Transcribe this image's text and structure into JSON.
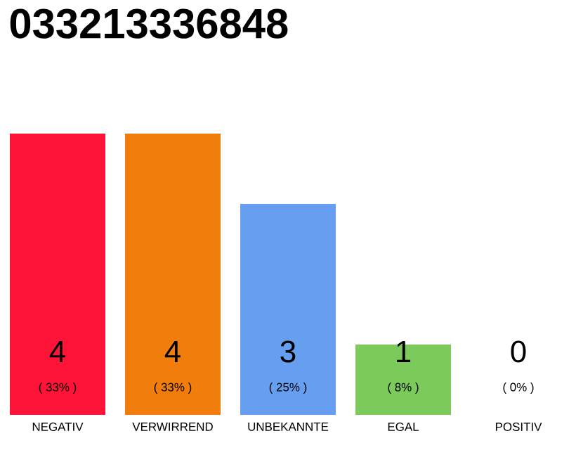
{
  "chart_data": {
    "type": "bar",
    "title": "033213336848",
    "categories": [
      "NEGATIV",
      "VERWIRREND",
      "UNBEKANNTE",
      "EGAL",
      "POSITIV"
    ],
    "values": [
      4,
      4,
      3,
      1,
      0
    ],
    "colors": [
      "#ff1439",
      "#f07d0c",
      "#669ff0",
      "#7cc95c",
      "#1aa64b"
    ],
    "data_labels": true,
    "annotations": [
      "( 33% )",
      "( 33% )",
      "( 25% )",
      "( 8% )",
      "( 0% )"
    ]
  }
}
